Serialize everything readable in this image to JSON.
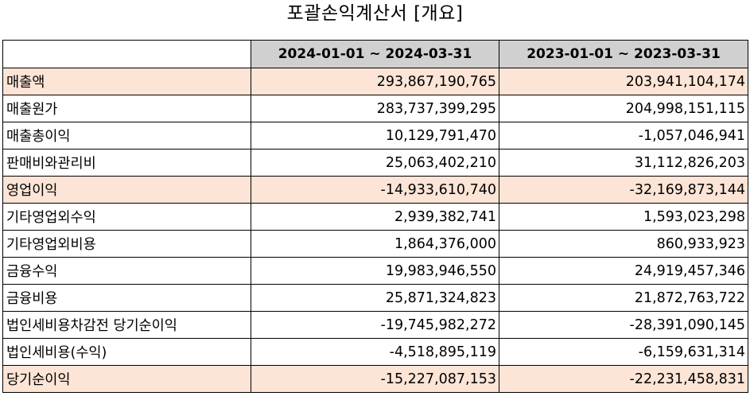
{
  "title": "포괄손익계산서 [개요]",
  "columns": [
    "2024-01-01 ~ 2024-03-31",
    "2023-01-01 ~ 2023-03-31"
  ],
  "highlight_color": "#fce4d6",
  "header_color": "#d0d0d0",
  "rows": [
    {
      "label": "매출액",
      "v1": "293,867,190,765",
      "v2": "203,941,104,174",
      "highlight": true
    },
    {
      "label": "매출원가",
      "v1": "283,737,399,295",
      "v2": "204,998,151,115",
      "highlight": false
    },
    {
      "label": "매출총이익",
      "v1": "10,129,791,470",
      "v2": "-1,057,046,941",
      "highlight": false
    },
    {
      "label": "판매비와관리비",
      "v1": "25,063,402,210",
      "v2": "31,112,826,203",
      "highlight": false
    },
    {
      "label": "영업이익",
      "v1": "-14,933,610,740",
      "v2": "-32,169,873,144",
      "highlight": true
    },
    {
      "label": "기타영업외수익",
      "v1": "2,939,382,741",
      "v2": "1,593,023,298",
      "highlight": false
    },
    {
      "label": "기타영업외비용",
      "v1": "1,864,376,000",
      "v2": "860,933,923",
      "highlight": false
    },
    {
      "label": "금융수익",
      "v1": "19,983,946,550",
      "v2": "24,919,457,346",
      "highlight": false
    },
    {
      "label": "금융비용",
      "v1": "25,871,324,823",
      "v2": "21,872,763,722",
      "highlight": false
    },
    {
      "label": "법인세비용차감전 당기순이익",
      "v1": "-19,745,982,272",
      "v2": "-28,391,090,145",
      "highlight": false
    },
    {
      "label": "법인세비용(수익)",
      "v1": "-4,518,895,119",
      "v2": "-6,159,631,314",
      "highlight": false
    },
    {
      "label": "당기순이익",
      "v1": "-15,227,087,153",
      "v2": "-22,231,458,831",
      "highlight": true
    }
  ]
}
